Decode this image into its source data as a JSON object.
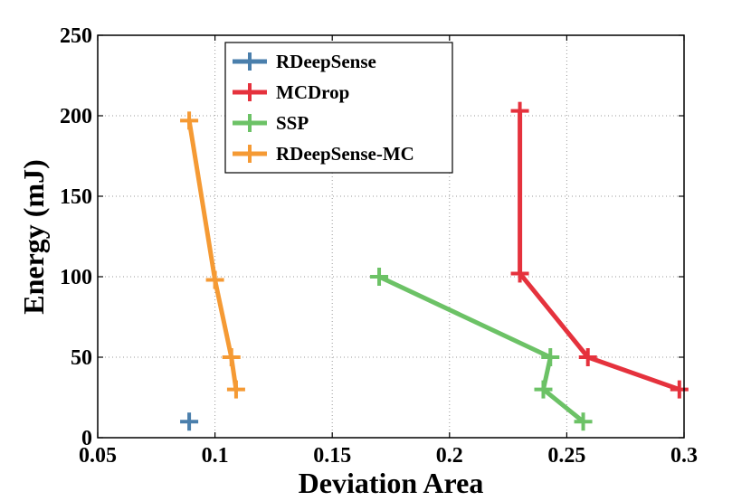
{
  "chart_data": {
    "type": "line",
    "title": "",
    "xlabel": "Deviation Area",
    "ylabel": "Energy (mJ)",
    "xlim": [
      0.05,
      0.3
    ],
    "ylim": [
      0,
      250
    ],
    "xticks": [
      0.05,
      0.1,
      0.15,
      0.2,
      0.25,
      0.3
    ],
    "xtick_labels": [
      "0.05",
      "0.1",
      "0.15",
      "0.2",
      "0.25",
      "0.3"
    ],
    "yticks": [
      0,
      50,
      100,
      150,
      200,
      250
    ],
    "ytick_labels": [
      "0",
      "50",
      "100",
      "150",
      "200",
      "250"
    ],
    "grid": true,
    "legend_position": "top-left",
    "series": [
      {
        "name": "RDeepSense",
        "color": "#4a7fac",
        "points": [
          {
            "x": 0.089,
            "y": 10
          }
        ]
      },
      {
        "name": "MCDrop",
        "color": "#e5323d",
        "points": [
          {
            "x": 0.23,
            "y": 203
          },
          {
            "x": 0.23,
            "y": 102
          },
          {
            "x": 0.259,
            "y": 50
          },
          {
            "x": 0.298,
            "y": 30
          }
        ]
      },
      {
        "name": "SSP",
        "color": "#6cc266",
        "points": [
          {
            "x": 0.17,
            "y": 100
          },
          {
            "x": 0.243,
            "y": 50
          },
          {
            "x": 0.24,
            "y": 30
          },
          {
            "x": 0.257,
            "y": 10
          }
        ]
      },
      {
        "name": "RDeepSense-MC",
        "color": "#f59a34",
        "points": [
          {
            "x": 0.089,
            "y": 197
          },
          {
            "x": 0.1,
            "y": 98
          },
          {
            "x": 0.107,
            "y": 50
          },
          {
            "x": 0.109,
            "y": 30
          }
        ]
      }
    ]
  }
}
